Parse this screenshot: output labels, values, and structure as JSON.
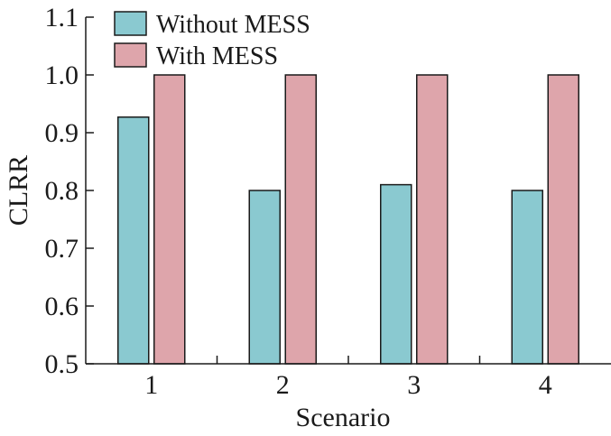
{
  "chart_data": {
    "type": "bar",
    "categories": [
      "1",
      "2",
      "3",
      "4"
    ],
    "series": [
      {
        "name": "Without MESS",
        "values": [
          0.927,
          0.8,
          0.81,
          0.8
        ],
        "color": "#8ac9d0"
      },
      {
        "name": "With MESS",
        "values": [
          1.0,
          1.0,
          1.0,
          1.0
        ],
        "color": "#dea5ab"
      }
    ],
    "xlabel": "Scenario",
    "ylabel": "CLRR",
    "ylim": [
      0.5,
      1.1
    ],
    "yticks": [
      "0.5",
      "0.6",
      "0.7",
      "0.8",
      "0.9",
      "1.0",
      "1.1"
    ],
    "legend_position": "top-left",
    "grid": false
  }
}
